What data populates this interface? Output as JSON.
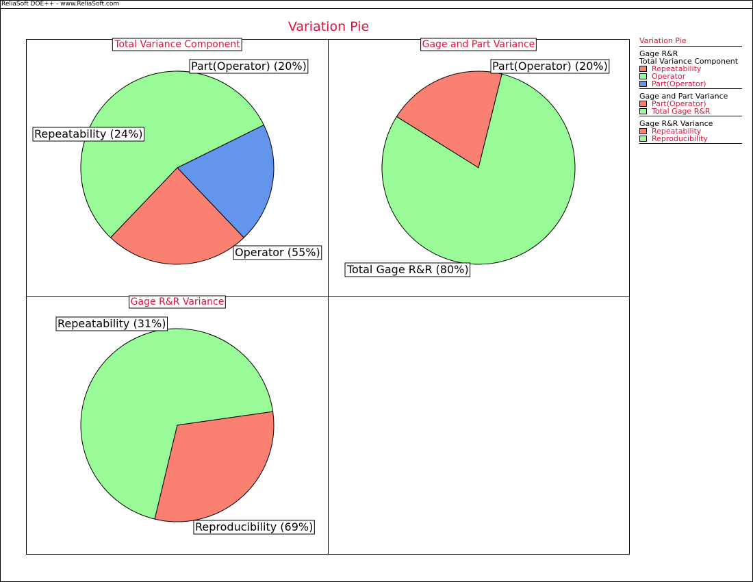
{
  "banner": "ReliaSoft DOE++ - www.ReliaSoft.com",
  "colors": {
    "red": "#fa8072",
    "green": "#98fb98",
    "blue": "#6495ed",
    "accent": "#dc143c"
  },
  "chart_data": {
    "type": "pie",
    "title": "Variation Pie",
    "pies": [
      {
        "title": "Total Variance Component",
        "slices": [
          {
            "name": "Part(Operator)",
            "percent": 20,
            "color": "#6495ed",
            "label": "Part(Operator) (20%)"
          },
          {
            "name": "Operator",
            "percent": 55,
            "color": "#98fb98",
            "label": "Operator (55%)"
          },
          {
            "name": "Repeatability",
            "percent": 24,
            "color": "#fa8072",
            "label": "Repeatability (24%)"
          }
        ]
      },
      {
        "title": "Gage and Part Variance",
        "slices": [
          {
            "name": "Part(Operator)",
            "percent": 20,
            "color": "#fa8072",
            "label": "Part(Operator) (20%)"
          },
          {
            "name": "Total Gage R&R",
            "percent": 80,
            "color": "#98fb98",
            "label": "Total Gage R&R (80%)"
          }
        ]
      },
      {
        "title": "Gage R&R Variance",
        "slices": [
          {
            "name": "Reproducibility",
            "percent": 69,
            "color": "#98fb98",
            "label": "Reproducibility (69%)"
          },
          {
            "name": "Repeatability",
            "percent": 31,
            "color": "#fa8072",
            "label": "Repeatability (31%)"
          }
        ]
      }
    ],
    "legend": {
      "header": "Variation Pie",
      "top_label": "Gage R&R",
      "groups": [
        {
          "title": "Total Variance Component",
          "items": [
            {
              "label": "Repeatability",
              "color": "#fa8072"
            },
            {
              "label": "Operator",
              "color": "#98fb98"
            },
            {
              "label": "Part(Operator)",
              "color": "#6495ed"
            }
          ]
        },
        {
          "title": "Gage and Part Variance",
          "items": [
            {
              "label": "Part(Operator)",
              "color": "#fa8072"
            },
            {
              "label": "Total Gage R&R",
              "color": "#98fb98"
            }
          ]
        },
        {
          "title": "Gage R&R Variance",
          "items": [
            {
              "label": "Repeatability",
              "color": "#fa8072"
            },
            {
              "label": "Reproducibility",
              "color": "#98fb98"
            }
          ]
        }
      ]
    }
  }
}
